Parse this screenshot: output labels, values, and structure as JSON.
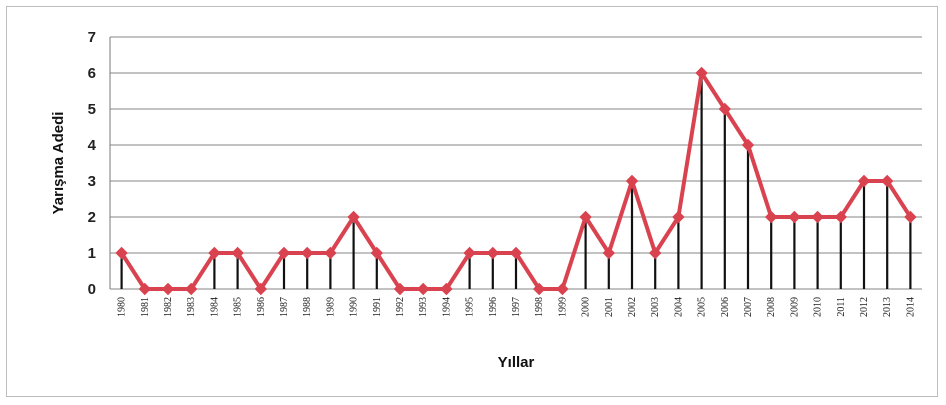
{
  "chart_data": {
    "type": "line",
    "title": "",
    "xlabel": "Yıllar",
    "ylabel": "Yarışma Adedi",
    "ylim": [
      0,
      7
    ],
    "yticks": [
      0,
      1,
      2,
      3,
      4,
      5,
      6,
      7
    ],
    "grid": true,
    "legend": "none",
    "drop_lines": true,
    "colors": {
      "line": "#d9434f",
      "marker": "#d9434f",
      "drop_line": "#111111",
      "grid": "#9e9e9e"
    },
    "x": [
      "1980",
      "1981",
      "1982",
      "1983",
      "1984",
      "1985",
      "1986",
      "1987",
      "1988",
      "1989",
      "1990",
      "1991",
      "1992",
      "1993",
      "1994",
      "1995",
      "1996",
      "1997",
      "1998",
      "1999",
      "2000",
      "2001",
      "2002",
      "2003",
      "2004",
      "2005",
      "2006",
      "2007",
      "2008",
      "2009",
      "2010",
      "2011",
      "2012",
      "2013",
      "2014"
    ],
    "series": [
      {
        "values": [
          1,
          0,
          0,
          0,
          1,
          1,
          0,
          1,
          1,
          1,
          2,
          1,
          0,
          0,
          0,
          1,
          1,
          1,
          0,
          0,
          2,
          1,
          3,
          1,
          2,
          6,
          5,
          4,
          2,
          2,
          2,
          2,
          3,
          3,
          2
        ]
      }
    ]
  }
}
